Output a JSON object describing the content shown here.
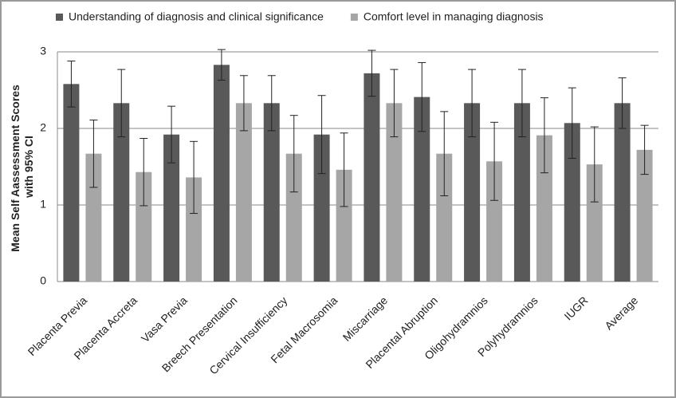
{
  "chart_data": {
    "type": "bar",
    "y_label": [
      "Mean Self Aassessment  Scores",
      "with 95% CI"
    ],
    "categories": [
      "Placenta Previa",
      "Placenta Accreta",
      "Vasa Previa",
      "Breech Presentation",
      "Cervical Insufficiency",
      "Fetal Macrosomia",
      "Miscarriage",
      "Placental Abruption",
      "Oligohydramnios",
      "Polyhydramnios",
      "IUGR",
      "Average"
    ],
    "series": [
      {
        "name": "Understanding of diagnosis and clinical significance",
        "color": "#595959",
        "values": [
          2.58,
          2.33,
          1.92,
          2.83,
          2.33,
          1.92,
          2.72,
          2.41,
          2.33,
          2.33,
          2.07,
          2.33
        ],
        "errors": [
          0.3,
          0.44,
          0.37,
          0.2,
          0.36,
          0.51,
          0.3,
          0.45,
          0.44,
          0.44,
          0.46,
          0.33
        ]
      },
      {
        "name": "Comfort level in managing diagnosis",
        "color": "#a6a6a6",
        "values": [
          1.67,
          1.43,
          1.36,
          2.33,
          1.67,
          1.46,
          2.33,
          1.67,
          1.57,
          1.91,
          1.53,
          1.72
        ],
        "errors": [
          0.44,
          0.44,
          0.47,
          0.36,
          0.5,
          0.48,
          0.44,
          0.55,
          0.51,
          0.49,
          0.49,
          0.32
        ]
      }
    ],
    "ylim": [
      0,
      3
    ],
    "yticks": [
      0,
      1,
      2,
      3
    ],
    "grid": true
  }
}
